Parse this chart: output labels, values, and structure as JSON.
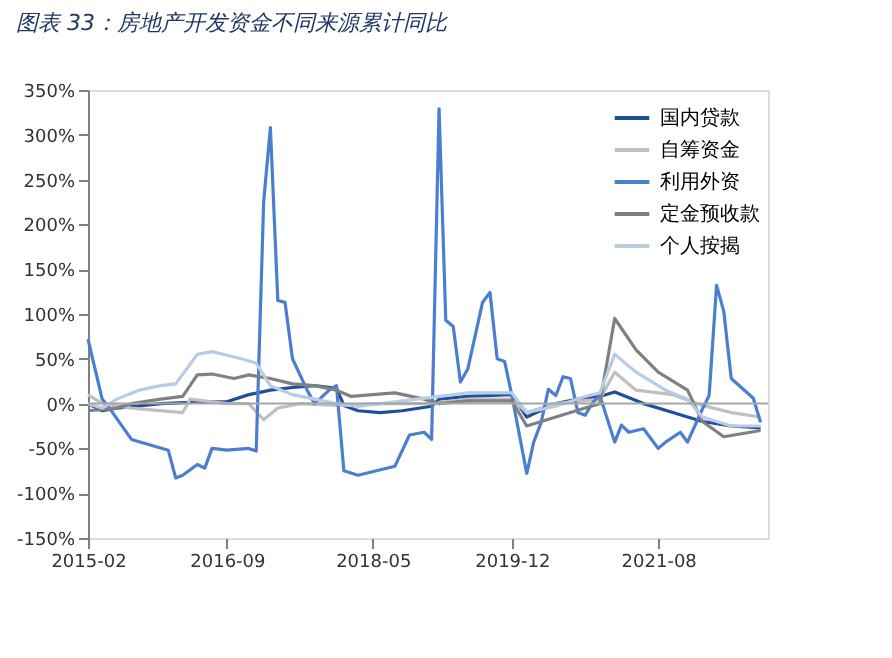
{
  "chart_data": {
    "type": "line",
    "title": "图表 33：房地产开发资金不同来源累计同比",
    "xlim": [
      "2015-02",
      "2022-11"
    ],
    "xticks": [
      "2015-02",
      "2016-09",
      "2018-05",
      "2019-12",
      "2021-08"
    ],
    "ylim": [
      -150,
      350
    ],
    "yticks": [
      {
        "value": -150,
        "label": "-150%"
      },
      {
        "value": -100,
        "label": "-100%"
      },
      {
        "value": -50,
        "label": "-50%"
      },
      {
        "value": 0,
        "label": "0%"
      },
      {
        "value": 50,
        "label": "50%"
      },
      {
        "value": 100,
        "label": "100%"
      },
      {
        "value": 150,
        "label": "150%"
      },
      {
        "value": 200,
        "label": "200%"
      },
      {
        "value": 250,
        "label": "250%"
      },
      {
        "value": 300,
        "label": "300%"
      },
      {
        "value": 350,
        "label": "350%"
      }
    ],
    "grid": false,
    "legend": "top right",
    "marker": "none",
    "line_style": "solid",
    "ref_lines": [
      {
        "axis": "y",
        "value": 0,
        "label": null,
        "color": "#a6a6a6"
      }
    ],
    "series": [
      {
        "name": "国内贷款",
        "color": "#1f4e9c",
        "x": [
          "2015-02",
          "2015-04",
          "2015-06",
          "2015-12",
          "2016-06",
          "2016-09",
          "2016-12",
          "2017-03",
          "2017-06",
          "2017-09",
          "2017-12",
          "2018-01",
          "2018-03",
          "2018-06",
          "2018-09",
          "2019-01",
          "2019-02",
          "2019-06",
          "2019-12",
          "2020-02",
          "2020-06",
          "2020-09",
          "2020-12",
          "2021-02",
          "2021-06",
          "2021-10",
          "2022-02",
          "2022-06",
          "2022-10"
        ],
        "values": [
          0,
          -8,
          -5,
          0,
          2,
          2,
          10,
          15,
          18,
          20,
          17,
          -2,
          -8,
          -10,
          -8,
          -3,
          5,
          8,
          10,
          -15,
          0,
          5,
          8,
          13,
          0,
          -10,
          -20,
          -25,
          -27
        ]
      },
      {
        "name": "自筹资金",
        "color": "#c0c0c0",
        "x": [
          "2015-02",
          "2015-04",
          "2015-08",
          "2016-03",
          "2016-04",
          "2016-09",
          "2016-12",
          "2017-02",
          "2017-04",
          "2017-07",
          "2017-12",
          "2018-06",
          "2019-01",
          "2019-06",
          "2019-12",
          "2020-02",
          "2020-06",
          "2020-12",
          "2021-02",
          "2021-05",
          "2021-10",
          "2022-02",
          "2022-06",
          "2022-10"
        ],
        "values": [
          10,
          0,
          -5,
          -10,
          5,
          0,
          0,
          -18,
          -5,
          0,
          -2,
          0,
          0,
          5,
          5,
          -10,
          0,
          5,
          35,
          15,
          10,
          -2,
          -10,
          -15
        ]
      },
      {
        "name": "利用外资",
        "color": "#4a7fd0",
        "x": [
          "2015-02",
          "2015-04",
          "2015-05",
          "2015-08",
          "2016-01",
          "2016-02",
          "2016-03",
          "2016-05",
          "2016-06",
          "2016-07",
          "2016-09",
          "2016-12",
          "2017-01",
          "2017-02",
          "2017-03",
          "2017-04",
          "2017-05",
          "2017-06",
          "2017-08",
          "2017-09",
          "2017-11",
          "2017-12",
          "2018-01",
          "2018-03",
          "2018-08",
          "2018-10",
          "2018-12",
          "2019-01",
          "2019-02",
          "2019-03",
          "2019-04",
          "2019-05",
          "2019-06",
          "2019-08",
          "2019-09",
          "2019-10",
          "2019-11",
          "2019-12",
          "2020-02",
          "2020-03",
          "2020-04",
          "2020-05",
          "2020-06",
          "2020-07",
          "2020-08",
          "2020-09",
          "2020-10",
          "2020-11",
          "2020-12",
          "2021-02",
          "2021-03",
          "2021-04",
          "2021-06",
          "2021-08",
          "2021-09",
          "2021-11",
          "2021-12",
          "2022-02",
          "2022-03",
          "2022-04",
          "2022-05",
          "2022-06",
          "2022-09",
          "2022-10"
        ],
        "values": [
          72,
          5,
          -5,
          -40,
          -52,
          -83,
          -80,
          -68,
          -72,
          -50,
          -52,
          -50,
          -53,
          225,
          308,
          115,
          113,
          50,
          15,
          0,
          15,
          20,
          -75,
          -80,
          -70,
          -35,
          -32,
          -40,
          329,
          93,
          86,
          24,
          39,
          113,
          124,
          50,
          47,
          9,
          -78,
          -43,
          -21,
          16,
          9,
          30,
          28,
          -10,
          -13,
          1,
          9,
          -43,
          -24,
          -32,
          -28,
          -50,
          -43,
          -32,
          -43,
          -6,
          9,
          132,
          103,
          28,
          6,
          -21
        ]
      },
      {
        "name": "定金预收款",
        "color": "#808080",
        "x": [
          "2015-02",
          "2015-06",
          "2015-08",
          "2015-12",
          "2016-03",
          "2016-05",
          "2016-07",
          "2016-10",
          "2016-12",
          "2017-03",
          "2017-06",
          "2017-09",
          "2017-12",
          "2018-02",
          "2018-05",
          "2018-08",
          "2018-12",
          "2019-02",
          "2019-06",
          "2019-12",
          "2020-02",
          "2020-06",
          "2020-10",
          "2020-12",
          "2021-02",
          "2021-05",
          "2021-08",
          "2021-12",
          "2022-02",
          "2022-05",
          "2022-10"
        ],
        "values": [
          -8,
          -5,
          0,
          5,
          8,
          32,
          33,
          28,
          32,
          28,
          22,
          20,
          15,
          8,
          10,
          12,
          5,
          0,
          3,
          3,
          -25,
          -15,
          -5,
          0,
          95,
          60,
          35,
          15,
          -20,
          -37,
          -30
        ]
      },
      {
        "name": "个人按揭",
        "color": "#b8cce4",
        "x": [
          "2015-02",
          "2015-04",
          "2015-06",
          "2015-09",
          "2015-12",
          "2016-02",
          "2016-05",
          "2016-07",
          "2016-11",
          "2017-01",
          "2017-03",
          "2017-06",
          "2017-09",
          "2017-12",
          "2018-03",
          "2018-08",
          "2019-02",
          "2019-06",
          "2019-12",
          "2020-02",
          "2020-06",
          "2020-10",
          "2020-12",
          "2021-02",
          "2021-05",
          "2021-09",
          "2021-12",
          "2022-02",
          "2022-06",
          "2022-10"
        ],
        "values": [
          0,
          -5,
          5,
          15,
          20,
          22,
          55,
          58,
          50,
          45,
          20,
          10,
          5,
          0,
          -3,
          2,
          8,
          12,
          12,
          -10,
          -3,
          8,
          12,
          55,
          35,
          15,
          5,
          -15,
          -25,
          -25
        ]
      }
    ]
  }
}
